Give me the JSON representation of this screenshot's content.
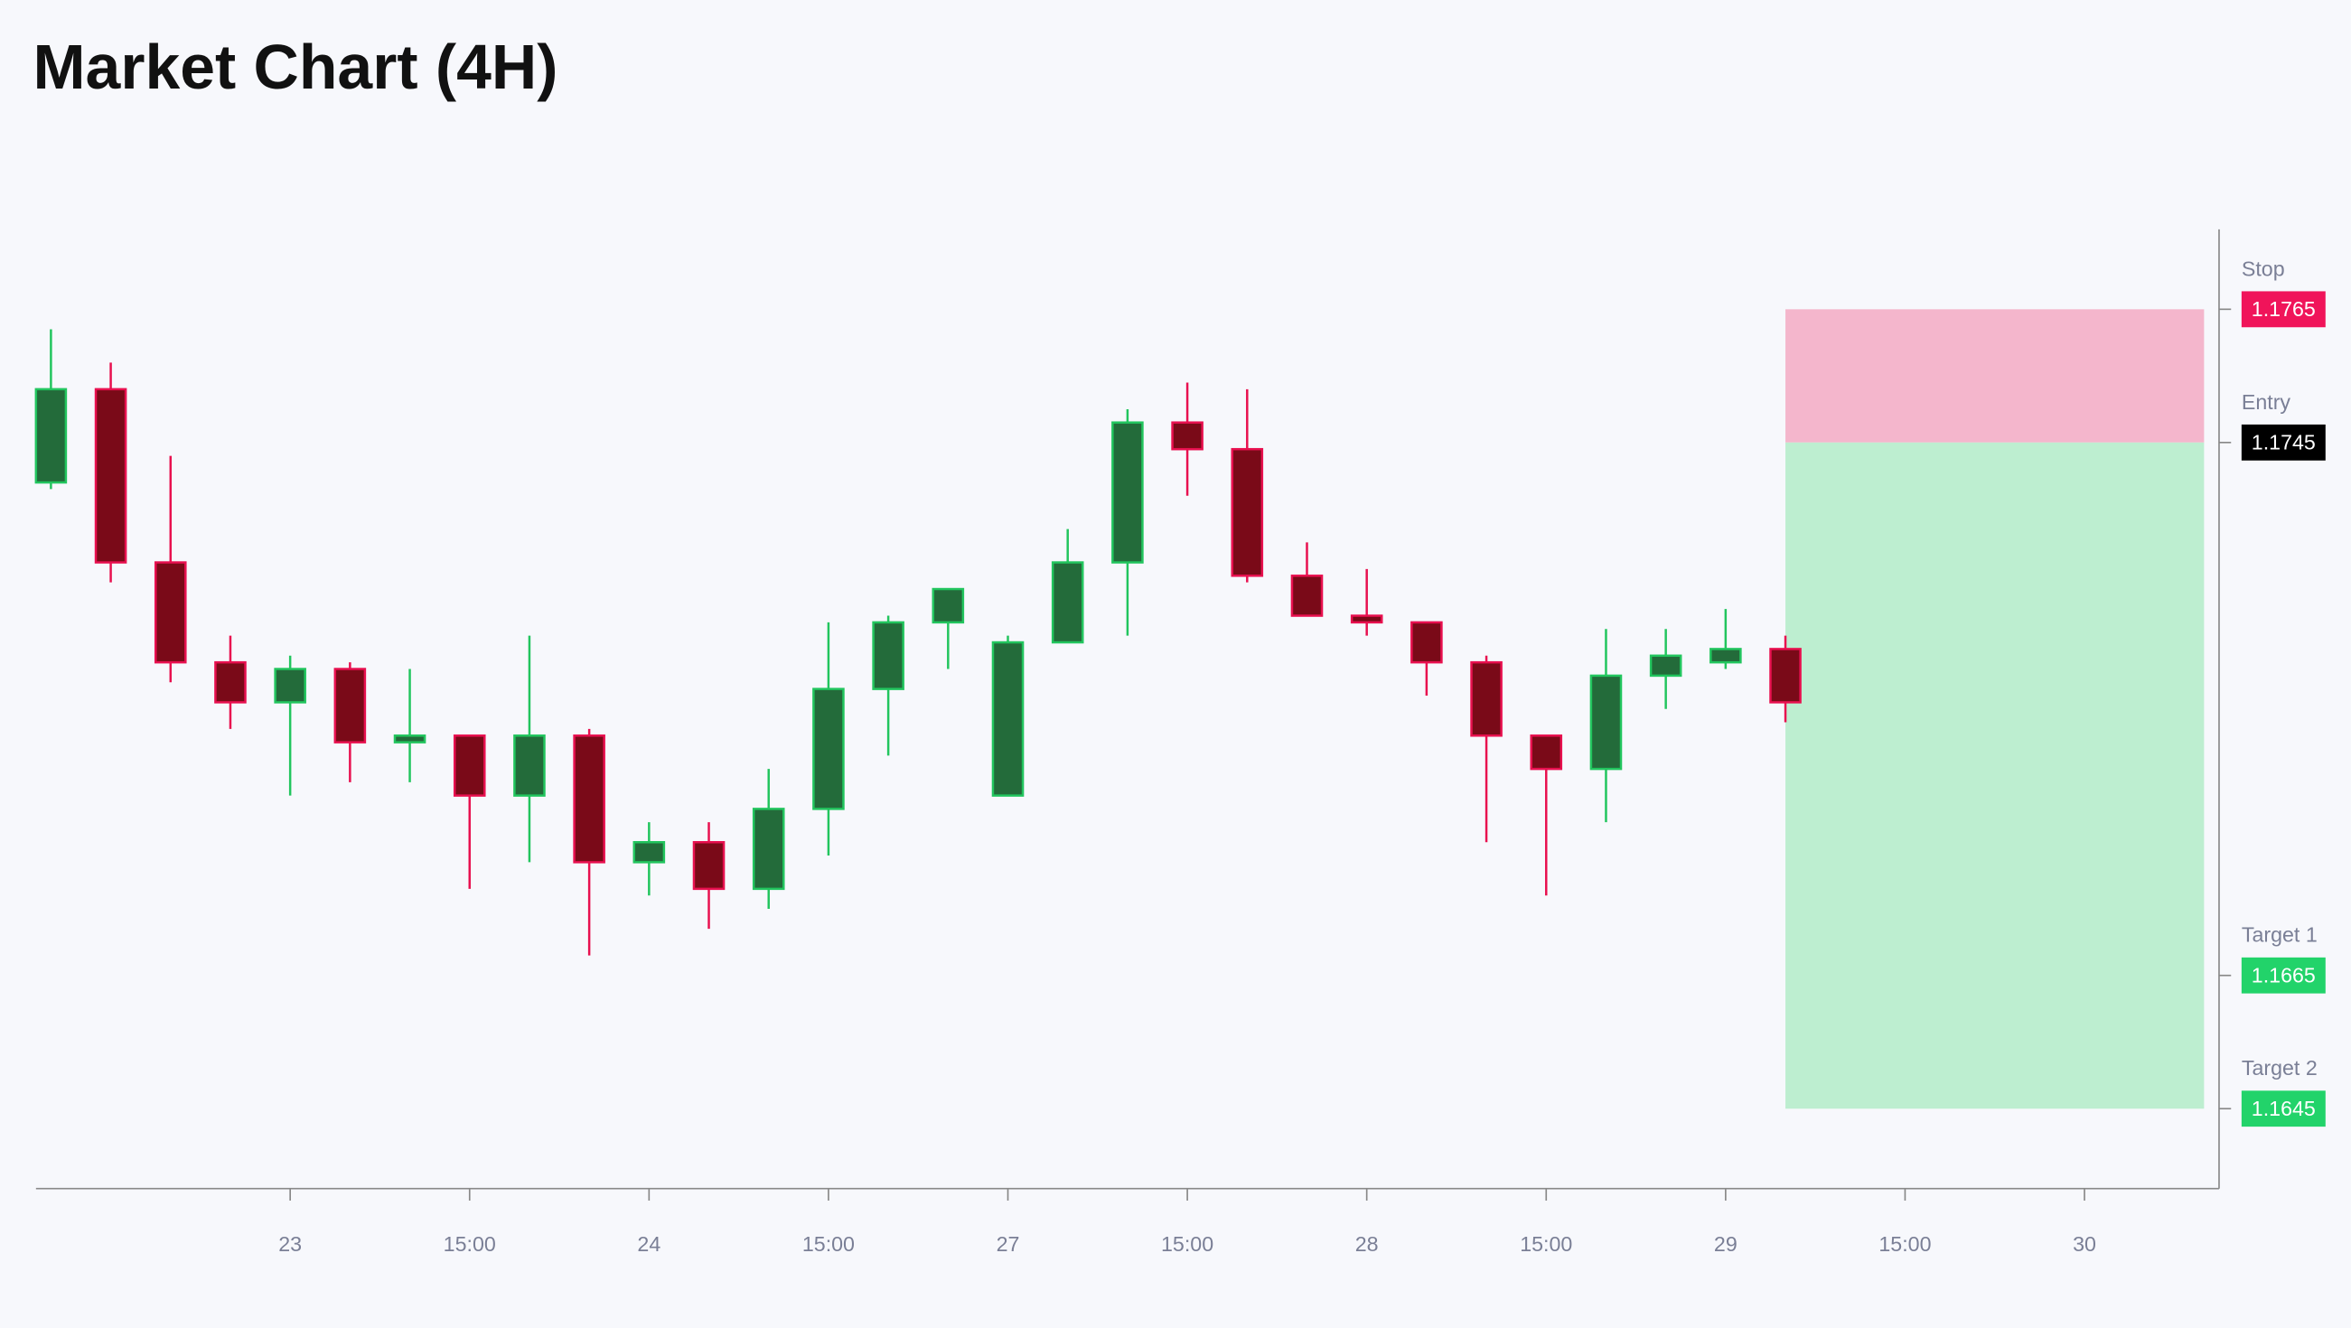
{
  "chart_data": {
    "type": "candlestick",
    "title": "Market Chart (4H)",
    "x": [
      0,
      1,
      2,
      3,
      4,
      5,
      6,
      7,
      8,
      9,
      10,
      11,
      12,
      13,
      14,
      15,
      16,
      17,
      18,
      19,
      20,
      21,
      22,
      23,
      24,
      25,
      26,
      27,
      28,
      29
    ],
    "open": [
      1.1739,
      1.1753,
      1.1727,
      1.1712,
      1.1706,
      1.1711,
      1.17,
      1.1701,
      1.1692,
      1.1701,
      1.1682,
      1.1685,
      1.1678,
      1.169,
      1.1708,
      1.1718,
      1.1692,
      1.1715,
      1.1727,
      1.1748,
      1.1744,
      1.1725,
      1.1719,
      1.1718,
      1.1712,
      1.1701,
      1.1696,
      1.171,
      1.1712,
      1.1714
    ],
    "high": [
      1.1762,
      1.1757,
      1.1743,
      1.1716,
      1.1713,
      1.1712,
      1.1711,
      1.1701,
      1.1716,
      1.1702,
      1.1688,
      1.1688,
      1.1696,
      1.1718,
      1.1719,
      1.1723,
      1.1716,
      1.1732,
      1.175,
      1.1754,
      1.1753,
      1.173,
      1.1726,
      1.1718,
      1.1713,
      1.1701,
      1.1717,
      1.1717,
      1.172,
      1.1716
    ],
    "low": [
      1.1738,
      1.1724,
      1.1709,
      1.1702,
      1.1692,
      1.1694,
      1.1694,
      1.1678,
      1.1682,
      1.1668,
      1.1677,
      1.1672,
      1.1675,
      1.1683,
      1.1698,
      1.1711,
      1.1692,
      1.1715,
      1.1716,
      1.1737,
      1.1724,
      1.1719,
      1.1716,
      1.1707,
      1.1685,
      1.1677,
      1.1688,
      1.1705,
      1.1711,
      1.1703
    ],
    "close": [
      1.1753,
      1.1727,
      1.1712,
      1.1706,
      1.1711,
      1.17,
      1.1701,
      1.1692,
      1.1701,
      1.1682,
      1.1685,
      1.1678,
      1.169,
      1.1708,
      1.1718,
      1.1723,
      1.1715,
      1.1727,
      1.1748,
      1.1744,
      1.1725,
      1.1719,
      1.1718,
      1.1712,
      1.1701,
      1.1696,
      1.171,
      1.1713,
      1.1714,
      1.1706
    ],
    "up_color": "#236b3a",
    "up_edge": "#22c55e",
    "down_color": "#7a0a18",
    "down_edge": "#e8104f",
    "xlim": [
      -0.25,
      36.25
    ],
    "xticks": [
      {
        "value": 4,
        "label": "23"
      },
      {
        "value": 7,
        "label": "15:00"
      },
      {
        "value": 10,
        "label": "24"
      },
      {
        "value": 13,
        "label": "15:00"
      },
      {
        "value": 16,
        "label": "27"
      },
      {
        "value": 19,
        "label": "15:00"
      },
      {
        "value": 22,
        "label": "28"
      },
      {
        "value": 25,
        "label": "15:00"
      },
      {
        "value": 28,
        "label": "29"
      },
      {
        "value": 31,
        "label": "15:00"
      },
      {
        "value": 34,
        "label": "30"
      }
    ],
    "ylim": [
      1.1633,
      1.1777
    ],
    "levels": [
      {
        "name": "Stop",
        "value": 1.1765,
        "color": "#f0145a"
      },
      {
        "name": "Entry",
        "value": 1.1745,
        "color": "#000000"
      },
      {
        "name": "Target 1",
        "value": 1.1665,
        "color": "#22d36a"
      },
      {
        "name": "Target 2",
        "value": 1.1645,
        "color": "#22d36a"
      }
    ],
    "risk_color": "#f4b6cc",
    "reward_color": "#bdeed0"
  }
}
